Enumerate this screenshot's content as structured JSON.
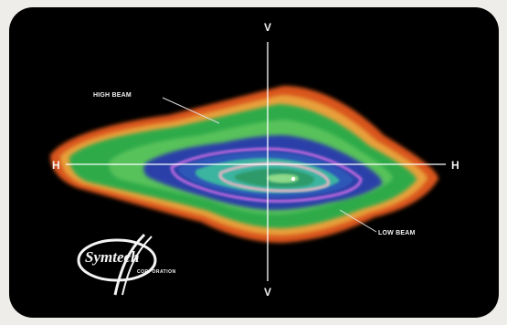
{
  "diagram": {
    "axis_labels": {
      "vertical_top": "V",
      "vertical_bottom": "V",
      "horizontal_left": "H",
      "horizontal_right": "H"
    },
    "beam_labels": {
      "high": "HIGH BEAM",
      "low": "LOW BEAM"
    },
    "logo": {
      "wordmark": "Symtech",
      "subtitle": "CORPORATION"
    },
    "colors": {
      "background": "#000000",
      "frame": "#efede9",
      "outer_band": "#d9541f",
      "green_band": "#2faa4a",
      "blue_band": "#2a3fa8",
      "axis_lines": "#ffffff"
    }
  }
}
